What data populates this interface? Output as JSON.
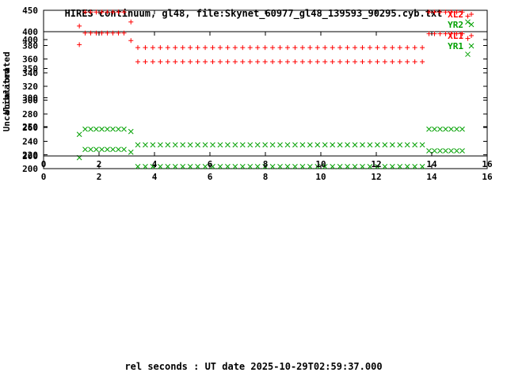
{
  "title": "HIRES continuum, gl48, file:Skynet_60977_gl48_139593_90295.cyb.txt",
  "xlabel": "rel seconds : UT date 2025-10-29T02:59:37.000",
  "colors": {
    "background": "#ffffff",
    "axis": "#000000",
    "series_red": "#ff0000",
    "series_green": "#00a000"
  },
  "chart_data": [
    {
      "type": "scatter",
      "title": "",
      "ylabel": "Uncalibrated",
      "xlabel": "",
      "xlim": [
        0,
        16
      ],
      "ylim": [
        200,
        400
      ],
      "xticks": [
        0,
        2,
        4,
        6,
        8,
        10,
        12,
        14,
        16
      ],
      "yticks": [
        200,
        220,
        240,
        260,
        280,
        300,
        320,
        340,
        360,
        380,
        400
      ],
      "grid": false,
      "legend_position": "top-right",
      "series": [
        {
          "name": "XL1",
          "marker": "plus",
          "color": "#ff0000",
          "segments": [
            {
              "y": 381,
              "x": [
                1.29
              ]
            },
            {
              "y": 398,
              "x": [
                1.5,
                1.7,
                1.9,
                2.1,
                2.3,
                2.5,
                2.7,
                2.9
              ]
            },
            {
              "y": 387,
              "x": [
                3.15
              ]
            },
            {
              "y": 356,
              "x": [
                3.4,
                3.67,
                3.94,
                4.21,
                4.48,
                4.75,
                5.02,
                5.29,
                5.56,
                5.83,
                6.1,
                6.37,
                6.64,
                6.91,
                7.18,
                7.45,
                7.72,
                7.99,
                8.26,
                8.53,
                8.8,
                9.07,
                9.34,
                9.61,
                9.88,
                10.15,
                10.42,
                10.69,
                10.96,
                11.23,
                11.5,
                11.77,
                12.04,
                12.31,
                12.58,
                12.85,
                13.12,
                13.39,
                13.66
              ]
            },
            {
              "y": 397,
              "x": [
                13.9,
                14.1,
                14.3,
                14.5,
                14.7,
                14.9,
                15.1
              ]
            },
            {
              "y": 390,
              "x": [
                15.3
              ]
            }
          ]
        },
        {
          "name": "YR1",
          "marker": "cross",
          "color": "#00a000",
          "segments": [
            {
              "y": 216,
              "x": [
                1.29
              ]
            },
            {
              "y": 228,
              "x": [
                1.5,
                1.7,
                1.9,
                2.1,
                2.3,
                2.5,
                2.7,
                2.9
              ]
            },
            {
              "y": 224,
              "x": [
                3.15
              ]
            },
            {
              "y": 203,
              "x": [
                3.4,
                3.67,
                3.94,
                4.21,
                4.48,
                4.75,
                5.02,
                5.29,
                5.56,
                5.83,
                6.1,
                6.37,
                6.64,
                6.91,
                7.18,
                7.45,
                7.72,
                7.99,
                8.26,
                8.53,
                8.8,
                9.07,
                9.34,
                9.61,
                9.88,
                10.15,
                10.42,
                10.69,
                10.96,
                11.23,
                11.5,
                11.77,
                12.04,
                12.31,
                12.58,
                12.85,
                13.12,
                13.39,
                13.66
              ]
            },
            {
              "y": 226,
              "x": [
                13.9,
                14.1,
                14.3,
                14.5,
                14.7,
                14.9,
                15.1
              ]
            },
            {
              "y": 367,
              "x": [
                15.3
              ]
            }
          ]
        }
      ]
    },
    {
      "type": "scatter",
      "title": "",
      "ylabel": "Uncalibrated",
      "xlabel": "rel seconds : UT date 2025-10-29T02:59:37.000",
      "xlim": [
        0,
        16
      ],
      "ylim": [
        200,
        450
      ],
      "xticks": [
        0,
        2,
        4,
        6,
        8,
        10,
        12,
        14,
        16
      ],
      "yticks": [
        200,
        250,
        300,
        350,
        400,
        450
      ],
      "grid": false,
      "legend_position": "top-right",
      "series": [
        {
          "name": "XL2",
          "marker": "plus",
          "color": "#ff0000",
          "segments": [
            {
              "y": 423,
              "x": [
                1.29
              ]
            },
            {
              "y": 447,
              "x": [
                1.5,
                1.7,
                1.9,
                2.1,
                2.3,
                2.5,
                2.7,
                2.9
              ]
            },
            {
              "y": 430,
              "x": [
                3.15
              ]
            },
            {
              "y": 386,
              "x": [
                3.4,
                3.67,
                3.94,
                4.21,
                4.48,
                4.75,
                5.02,
                5.29,
                5.56,
                5.83,
                6.1,
                6.37,
                6.64,
                6.91,
                7.18,
                7.45,
                7.72,
                7.99,
                8.26,
                8.53,
                8.8,
                9.07,
                9.34,
                9.61,
                9.88,
                10.15,
                10.42,
                10.69,
                10.96,
                11.23,
                11.5,
                11.77,
                12.04,
                12.31,
                12.58,
                12.85,
                13.12,
                13.39,
                13.66
              ]
            },
            {
              "y": 447,
              "x": [
                13.9,
                14.1,
                14.3,
                14.5,
                14.7,
                14.9,
                15.1
              ]
            },
            {
              "y": 440,
              "x": [
                15.3
              ]
            }
          ]
        },
        {
          "name": "YR2",
          "marker": "cross",
          "color": "#00a000",
          "segments": [
            {
              "y": 237,
              "x": [
                1.29
              ]
            },
            {
              "y": 246,
              "x": [
                1.5,
                1.7,
                1.9,
                2.1,
                2.3,
                2.5,
                2.7,
                2.9
              ]
            },
            {
              "y": 242,
              "x": [
                3.15
              ]
            },
            {
              "y": 219,
              "x": [
                3.4,
                3.67,
                3.94,
                4.21,
                4.48,
                4.75,
                5.02,
                5.29,
                5.56,
                5.83,
                6.1,
                6.37,
                6.64,
                6.91,
                7.18,
                7.45,
                7.72,
                7.99,
                8.26,
                8.53,
                8.8,
                9.07,
                9.34,
                9.61,
                9.88,
                10.15,
                10.42,
                10.69,
                10.96,
                11.23,
                11.5,
                11.77,
                12.04,
                12.31,
                12.58,
                12.85,
                13.12,
                13.39,
                13.66
              ]
            },
            {
              "y": 246,
              "x": [
                13.9,
                14.1,
                14.3,
                14.5,
                14.7,
                14.9,
                15.1
              ]
            },
            {
              "y": 430,
              "x": [
                15.3
              ]
            }
          ]
        }
      ]
    }
  ]
}
